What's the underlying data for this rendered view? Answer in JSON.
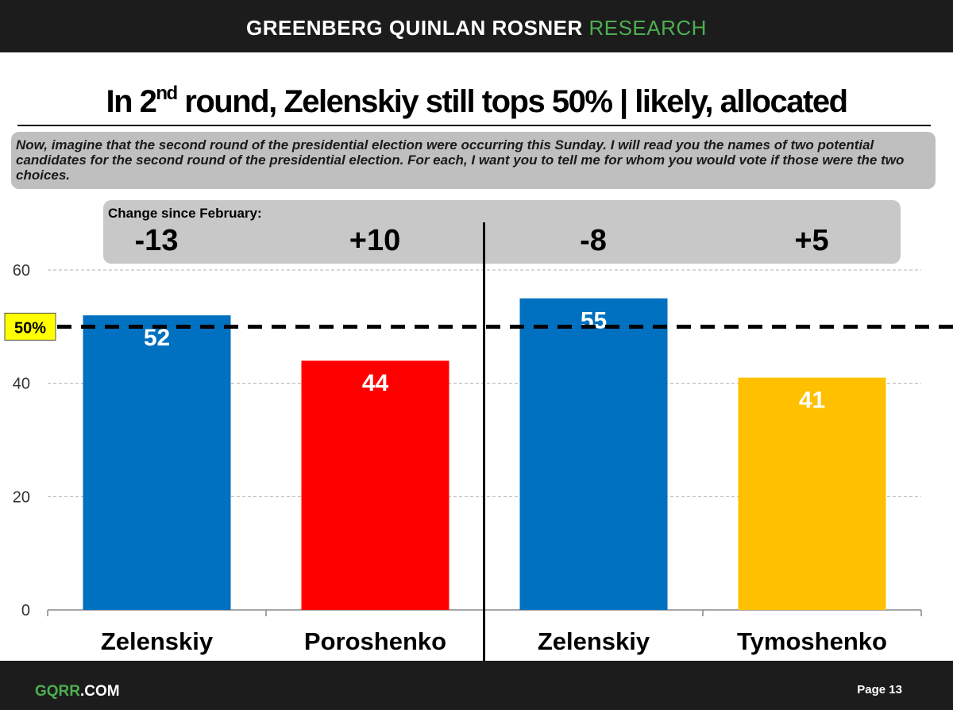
{
  "header": {
    "brand": "GREENBERG QUINLAN ROSNER",
    "brand_accent": "RESEARCH"
  },
  "title": {
    "main_before": "In 2",
    "superscript": "nd",
    "main_after": " round, Zelenskiy still tops 50% | likely, allocated"
  },
  "question": "Now, imagine that the second round of the presidential election were occurring this Sunday. I will read you the names of two potential candidates for the second round of the presidential election. For each, I want you to tell me for whom you would vote if those were the two choices.",
  "change": {
    "label": "Change since February:",
    "values": [
      "-13",
      "+10",
      "-8",
      "+5"
    ]
  },
  "footer": {
    "logo": "GQRR",
    "logo_suffix": ".COM",
    "page": "Page 13"
  },
  "colors": {
    "zelenskiy": "#0070c0",
    "poroshenko": "#ff0000",
    "tymoshenko": "#ffc000",
    "reference_label_bg": "#ffff00"
  },
  "chart_data": {
    "type": "bar",
    "categories": [
      "Zelenskiy",
      "Poroshenko",
      "Zelenskiy",
      "Tymoshenko"
    ],
    "values": [
      52,
      44,
      55,
      41
    ],
    "bar_colors": [
      "#0070c0",
      "#ff0000",
      "#0070c0",
      "#ffc000"
    ],
    "data_labels": [
      "52",
      "44",
      "55",
      "41"
    ],
    "ylim": [
      0,
      60
    ],
    "yticks": [
      0,
      20,
      40,
      60
    ],
    "reference_line": {
      "value": 50,
      "label": "50%",
      "style": "dashed"
    },
    "grid": true,
    "legend": "none"
  }
}
